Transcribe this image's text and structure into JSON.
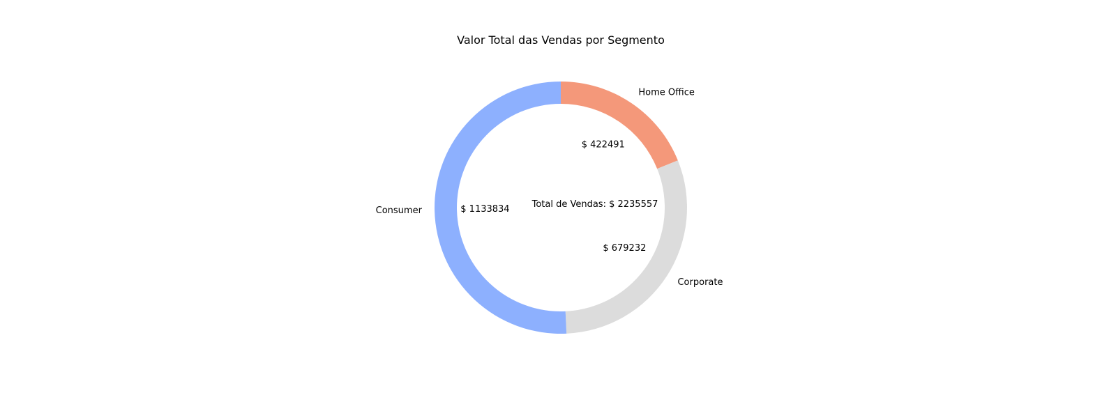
{
  "chart_data": {
    "type": "pie",
    "donut": true,
    "title": "Valor Total das Vendas por Segmento",
    "center_text": "Total de Vendas: $ 2235557",
    "value_prefix": "$ ",
    "start_angle_deg": 90,
    "direction": "clockwise",
    "slices": [
      {
        "label": "Home Office",
        "value": 422491,
        "color": "#f4987a"
      },
      {
        "label": "Corporate",
        "value": 679232,
        "color": "#dcdcdc"
      },
      {
        "label": "Consumer",
        "value": 1133834,
        "color": "#8db0fe"
      }
    ]
  }
}
